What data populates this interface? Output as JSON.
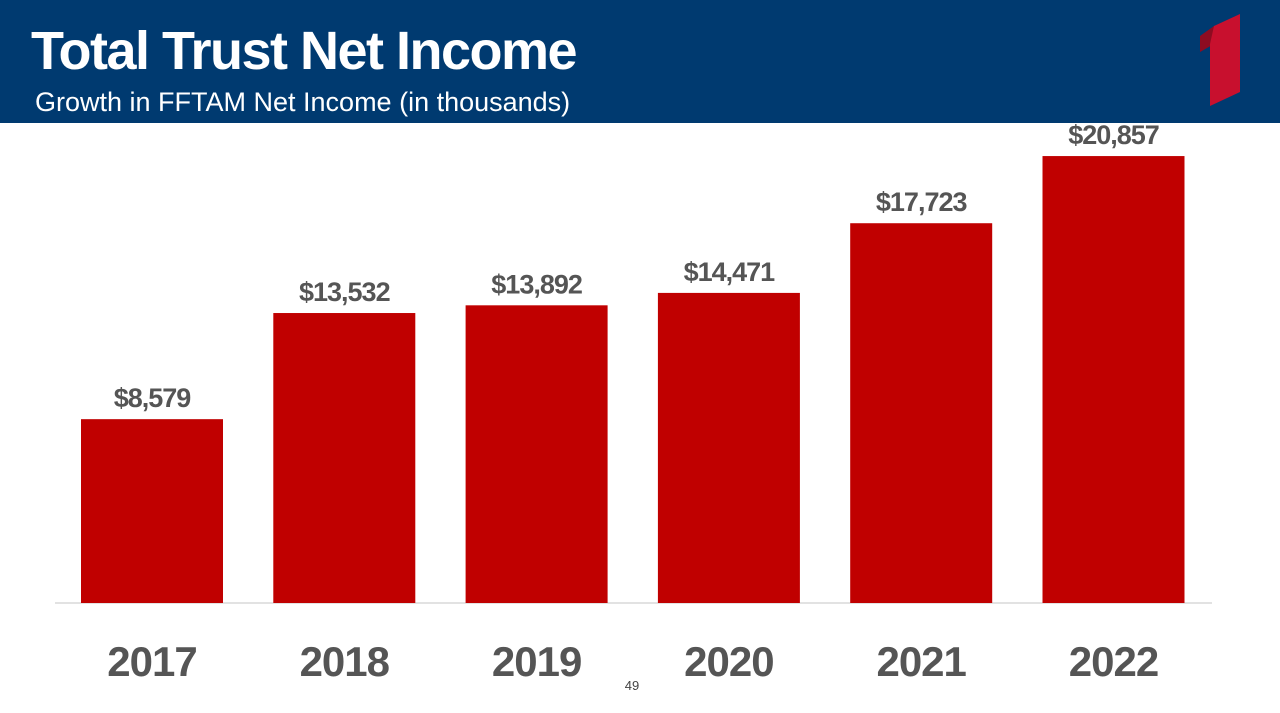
{
  "header": {
    "title": "Total Trust Net Income",
    "subtitle": "Growth in FFTAM Net Income (in thousands)",
    "logo_icon": "brand-one-mark-icon"
  },
  "chart_data": {
    "type": "bar",
    "categories": [
      "2017",
      "2018",
      "2019",
      "2020",
      "2021",
      "2022"
    ],
    "values": [
      8579,
      13532,
      13892,
      14471,
      17723,
      20857
    ],
    "data_labels": [
      "$8,579",
      "$13,532",
      "$13,892",
      "$14,471",
      "$17,723",
      "$20,857"
    ],
    "title": "",
    "xlabel": "",
    "ylabel": "",
    "ylim": [
      0,
      21000
    ],
    "grid": false,
    "legend": "none"
  },
  "colors": {
    "header_bg": "#003a70",
    "bar": "#c00000",
    "logo": "#c8102e",
    "text": "#555555",
    "axis": "#d9d9d9"
  },
  "footer": {
    "page_number": "49"
  }
}
